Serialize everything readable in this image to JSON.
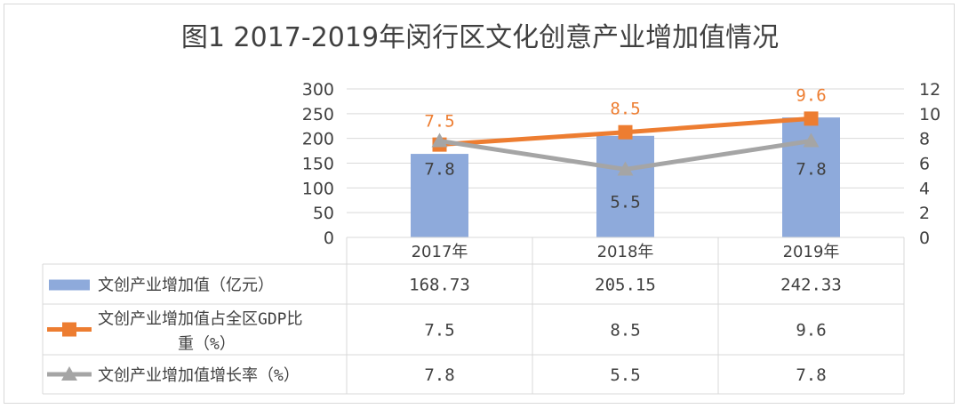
{
  "chart_data": {
    "type": "bar",
    "title": "图1 2017-2019年闵行区文化创意产业增加值情况",
    "categories": [
      "2017年",
      "2018年",
      "2019年"
    ],
    "y_left": {
      "ticks": [
        "300",
        "250",
        "200",
        "150",
        "100",
        "50",
        "0"
      ],
      "ylim": [
        0,
        300
      ]
    },
    "y_right": {
      "ticks": [
        "12",
        "10",
        "8",
        "6",
        "4",
        "2",
        "0"
      ],
      "ylim": [
        0,
        12
      ]
    },
    "grid": true,
    "legend": "data-table",
    "series": [
      {
        "name": "文创产业增加值（亿元）",
        "type": "bar",
        "axis": "left",
        "values": [
          168.73,
          205.15,
          242.33
        ],
        "table_values": [
          "168.73",
          "205.15",
          "242.33"
        ],
        "color": "#8eaadb"
      },
      {
        "name": "文创产业增加值占全区GDP比重（%）",
        "name_lines": [
          "文创产业增加值占全区GDP比",
          "重（%）"
        ],
        "type": "line",
        "marker": "square",
        "axis": "right",
        "values": [
          7.5,
          8.5,
          9.6
        ],
        "table_values": [
          "7.5",
          "8.5",
          "9.6"
        ],
        "labels": [
          "7.5",
          "8.5",
          "9.6"
        ],
        "color": "#ed7d31"
      },
      {
        "name": "文创产业增加值增长率（%）",
        "type": "line",
        "marker": "triangle",
        "axis": "right",
        "values": [
          7.8,
          5.5,
          7.8
        ],
        "table_values": [
          "7.8",
          "5.5",
          "7.8"
        ],
        "labels": [
          "7.8",
          "5.5",
          "7.8"
        ],
        "color": "#a5a5a5"
      }
    ]
  }
}
